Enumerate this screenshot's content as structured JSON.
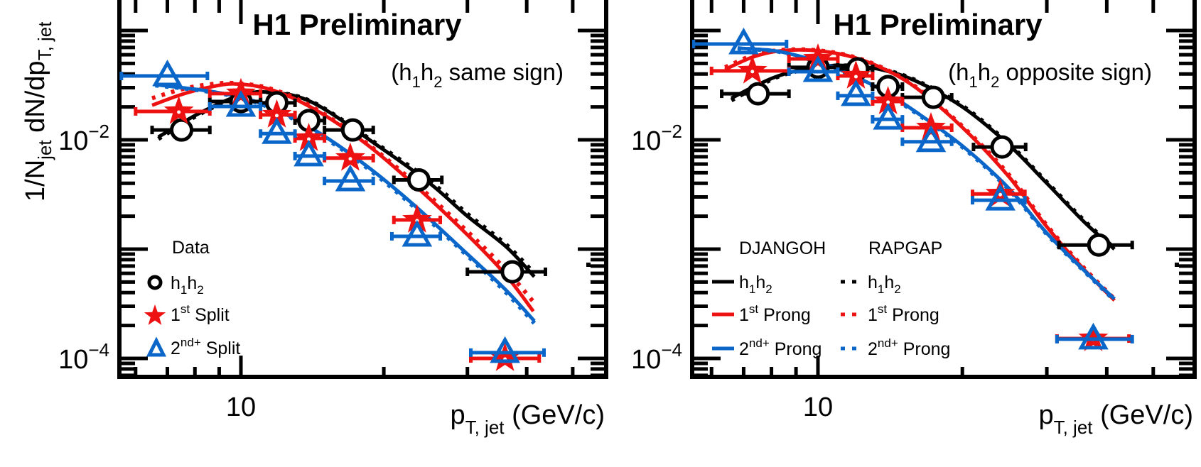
{
  "figure": {
    "ylabel": {
      "main": "1/N",
      "sub1": "jet",
      "mid": " dN/dp",
      "sub2": "T, jet"
    },
    "y_tick_labels": [
      {
        "value": 0.01,
        "base": "10",
        "exp": "−2"
      },
      {
        "value": 0.0001,
        "base": "10",
        "exp": "−4"
      }
    ],
    "x_tick_labels": [
      {
        "value": 10,
        "text": "10"
      }
    ],
    "xlabel": {
      "main": "p",
      "sub": "T, jet",
      "unit": " (GeV/c)"
    },
    "colors": {
      "h1h2": "#000000",
      "first": "#ee1111",
      "second": "#0a66c8"
    }
  },
  "chart_data": [
    {
      "type": "scatter",
      "panel": "left",
      "title": "H1 Preliminary",
      "annotation": {
        "pre": "(h",
        "s1": "1",
        "mid": "h",
        "s2": "2",
        "post": " same sign)"
      },
      "xlabel": "p_T, jet (GeV/c)",
      "ylabel": "1/N_jet dN/dp_T, jet",
      "xscale": "log",
      "yscale": "log",
      "xlim": [
        5.5,
        60
      ],
      "ylim": [
        6.8e-05,
        0.2
      ],
      "legend": {
        "placement": "bottom-left",
        "header": "Data",
        "entries": [
          {
            "marker": "circle",
            "label": "h",
            "s1": "1",
            "mid": "h",
            "s2": "2",
            "sup": "",
            "tail": "",
            "color_key": "h1h2"
          },
          {
            "marker": "star",
            "label": "1",
            "sup": "st",
            "tail": " Split",
            "color_key": "first"
          },
          {
            "marker": "triangle",
            "label": "2",
            "sup": "nd+",
            "tail": " Split",
            "color_key": "second"
          }
        ]
      },
      "series": [
        {
          "name": "Data h1h2",
          "marker": "circle",
          "color_key": "h1h2",
          "points": [
            {
              "x": 7.5,
              "y": 0.0123,
              "xlo": 6.5,
              "xhi": 8.6
            },
            {
              "x": 10.0,
              "y": 0.0224,
              "xlo": 8.6,
              "xhi": 11.0
            },
            {
              "x": 11.9,
              "y": 0.0218,
              "xlo": 11.0,
              "xhi": 13.0
            },
            {
              "x": 13.9,
              "y": 0.015,
              "xlo": 13.0,
              "xhi": 15.0
            },
            {
              "x": 17.2,
              "y": 0.0123,
              "xlo": 15.0,
              "xhi": 19.0
            },
            {
              "x": 23.7,
              "y": 0.0043,
              "xlo": 21.0,
              "xhi": 26.5
            },
            {
              "x": 37.3,
              "y": 0.00062,
              "xlo": 30.0,
              "xhi": 43.8
            }
          ]
        },
        {
          "name": "Data 1st Split",
          "marker": "star",
          "color_key": "first",
          "points": [
            {
              "x": 7.4,
              "y": 0.0182,
              "xlo": 6.0,
              "xhi": 8.6
            },
            {
              "x": 10.0,
              "y": 0.0265,
              "xlo": 8.6,
              "xhi": 11.0
            },
            {
              "x": 11.9,
              "y": 0.0169,
              "xlo": 11.0,
              "xhi": 13.0
            },
            {
              "x": 13.9,
              "y": 0.0103,
              "xlo": 13.0,
              "xhi": 15.0
            },
            {
              "x": 17.0,
              "y": 0.0068,
              "xlo": 15.0,
              "xhi": 19.0
            },
            {
              "x": 23.5,
              "y": 0.00185,
              "xlo": 21.0,
              "xhi": 26.3
            },
            {
              "x": 36.0,
              "y": 0.0001,
              "xlo": 30.5,
              "xhi": 42.5
            }
          ]
        },
        {
          "name": "Data 2nd+ Split",
          "marker": "triangle",
          "color_key": "second",
          "points": [
            {
              "x": 7.0,
              "y": 0.0384,
              "xlo": 5.6,
              "xhi": 8.5
            },
            {
              "x": 10.0,
              "y": 0.0202,
              "xlo": 8.6,
              "xhi": 11.0
            },
            {
              "x": 11.9,
              "y": 0.0114,
              "xlo": 11.0,
              "xhi": 13.0
            },
            {
              "x": 13.9,
              "y": 0.0071,
              "xlo": 13.0,
              "xhi": 15.0
            },
            {
              "x": 17.0,
              "y": 0.0042,
              "xlo": 15.0,
              "xhi": 19.0
            },
            {
              "x": 23.5,
              "y": 0.00131,
              "xlo": 20.8,
              "xhi": 26.3
            },
            {
              "x": 36.0,
              "y": 0.000113,
              "xlo": 30.5,
              "xhi": 43.5
            }
          ]
        },
        {
          "name": "DJANGOH h1h2",
          "line": "solid",
          "color_key": "h1h2",
          "x": [
            6.7,
            8.15,
            9.9,
            11.5,
            14.2,
            19.6,
            25.0,
            30.0,
            36.2,
            41.5
          ],
          "y": [
            0.0106,
            0.0174,
            0.0253,
            0.0272,
            0.0218,
            0.0086,
            0.004,
            0.002,
            0.00105,
            0.00056
          ]
        },
        {
          "name": "RAPGAP h1h2",
          "line": "dotted",
          "color_key": "h1h2",
          "x": [
            6.7,
            8.15,
            9.9,
            11.5,
            14.2,
            19.6,
            25.0,
            30.0,
            36.2,
            41.5
          ],
          "y": [
            0.0102,
            0.017,
            0.025,
            0.0272,
            0.022,
            0.0088,
            0.0042,
            0.0021,
            0.0011,
            0.0006
          ]
        },
        {
          "name": "DJANGOH 1st Prong",
          "line": "solid",
          "color_key": "first",
          "x": [
            6.5,
            7.5,
            8.5,
            9.7,
            11.5,
            14.0,
            18.0,
            23.0,
            30.0,
            36.0,
            41.3
          ],
          "y": [
            0.0207,
            0.026,
            0.03,
            0.0325,
            0.029,
            0.02,
            0.0098,
            0.004,
            0.00135,
            0.00059,
            0.00027
          ]
        },
        {
          "name": "RAPGAP 1st Prong",
          "line": "dotted",
          "color_key": "first",
          "x": [
            6.5,
            7.5,
            8.5,
            9.7,
            11.5,
            14.0,
            18.0,
            23.0,
            30.0,
            36.0,
            41.3
          ],
          "y": [
            0.024,
            0.029,
            0.032,
            0.033,
            0.0295,
            0.0205,
            0.01,
            0.0042,
            0.00145,
            0.00066,
            0.00033
          ]
        },
        {
          "name": "DJANGOH 2nd+ Prong",
          "line": "solid",
          "color_key": "second",
          "x": [
            6.6,
            7.5,
            8.5,
            9.9,
            11.5,
            14.0,
            18.0,
            23.0,
            30.0,
            36.0,
            41.5
          ],
          "y": [
            0.032,
            0.03,
            0.028,
            0.0248,
            0.02,
            0.013,
            0.0062,
            0.0026,
            0.0009,
            0.00043,
            0.00022
          ]
        },
        {
          "name": "RAPGAP 2nd+ Prong",
          "line": "dotted",
          "color_key": "second",
          "x": [
            6.6,
            7.5,
            8.5,
            9.9,
            11.5,
            14.0,
            18.0,
            23.0,
            30.0,
            36.0,
            41.5
          ],
          "y": [
            0.0315,
            0.0297,
            0.0277,
            0.0245,
            0.0197,
            0.0127,
            0.006,
            0.0025,
            0.00087,
            0.00041,
            0.00021
          ]
        }
      ]
    },
    {
      "type": "scatter",
      "panel": "right",
      "title": "H1 Preliminary",
      "annotation": {
        "pre": "(h",
        "s1": "1",
        "mid": "h",
        "s2": "2",
        "post": " opposite sign)"
      },
      "xlabel": "p_T, jet (GeV/c)",
      "ylabel": "1/N_jet dN/dp_T, jet",
      "xscale": "log",
      "yscale": "log",
      "xlim": [
        5.5,
        60
      ],
      "ylim": [
        6.8e-05,
        0.2
      ],
      "legend": {
        "placement": "bottom-left",
        "headers": [
          "DJANGOH",
          "RAPGAP"
        ],
        "entries": [
          {
            "line": "solid",
            "color_key": "h1h2",
            "label": "h",
            "s1": "1",
            "mid": "h",
            "s2": "2",
            "sup": "",
            "tail": ""
          },
          {
            "line": "solid",
            "color_key": "first",
            "label": "1",
            "sup": "st",
            "tail": " Prong"
          },
          {
            "line": "solid",
            "color_key": "second",
            "label": "2",
            "sup": "nd+",
            "tail": " Prong"
          },
          {
            "line": "dotted",
            "color_key": "h1h2",
            "label": "h",
            "s1": "1",
            "mid": "h",
            "s2": "2",
            "sup": "",
            "tail": ""
          },
          {
            "line": "dotted",
            "color_key": "first",
            "label": "1",
            "sup": "st",
            "tail": " Prong"
          },
          {
            "line": "dotted",
            "color_key": "second",
            "label": "2",
            "sup": "nd+",
            "tail": " Prong"
          }
        ]
      },
      "series": [
        {
          "name": "Data h1h2",
          "marker": "circle",
          "color_key": "h1h2",
          "points": [
            {
              "x": 7.5,
              "y": 0.0264,
              "xlo": 6.3,
              "xhi": 8.7
            },
            {
              "x": 10.0,
              "y": 0.046,
              "xlo": 8.7,
              "xhi": 11.0
            },
            {
              "x": 12.1,
              "y": 0.0446,
              "xlo": 11.0,
              "xhi": 13.0
            },
            {
              "x": 14.0,
              "y": 0.0307,
              "xlo": 13.0,
              "xhi": 15.0
            },
            {
              "x": 17.4,
              "y": 0.0245,
              "xlo": 15.0,
              "xhi": 19.0
            },
            {
              "x": 24.2,
              "y": 0.0086,
              "xlo": 21.1,
              "xhi": 27.1
            },
            {
              "x": 38.5,
              "y": 0.00109,
              "xlo": 31.8,
              "xhi": 45.2
            }
          ]
        },
        {
          "name": "Data 1st Split",
          "marker": "star",
          "color_key": "first",
          "points": [
            {
              "x": 7.3,
              "y": 0.0427,
              "xlo": 6.0,
              "xhi": 8.7
            },
            {
              "x": 10.0,
              "y": 0.055,
              "xlo": 8.7,
              "xhi": 11.0
            },
            {
              "x": 12.0,
              "y": 0.0384,
              "xlo": 11.0,
              "xhi": 13.0
            },
            {
              "x": 14.0,
              "y": 0.0224,
              "xlo": 13.0,
              "xhi": 15.0
            },
            {
              "x": 17.2,
              "y": 0.0129,
              "xlo": 15.0,
              "xhi": 19.0
            },
            {
              "x": 24.0,
              "y": 0.0032,
              "xlo": 21.0,
              "xhi": 27.0
            },
            {
              "x": 37.5,
              "y": 0.000152,
              "xlo": 31.5,
              "xhi": 44.5
            }
          ]
        },
        {
          "name": "Data 2nd+ Split",
          "marker": "triangle",
          "color_key": "second",
          "points": [
            {
              "x": 7.0,
              "y": 0.0753,
              "xlo": 5.5,
              "xhi": 8.6
            },
            {
              "x": 10.0,
              "y": 0.042,
              "xlo": 8.7,
              "xhi": 11.0
            },
            {
              "x": 12.0,
              "y": 0.0253,
              "xlo": 11.0,
              "xhi": 13.0
            },
            {
              "x": 14.0,
              "y": 0.0154,
              "xlo": 13.0,
              "xhi": 15.0
            },
            {
              "x": 17.2,
              "y": 0.0096,
              "xlo": 15.0,
              "xhi": 19.0
            },
            {
              "x": 24.0,
              "y": 0.0028,
              "xlo": 21.0,
              "xhi": 27.0
            },
            {
              "x": 37.5,
              "y": 0.00015,
              "xlo": 31.5,
              "xhi": 45.2
            }
          ]
        },
        {
          "name": "DJANGOH h1h2",
          "line": "solid",
          "color_key": "h1h2",
          "x": [
            6.6,
            7.5,
            8.5,
            10.0,
            11.5,
            13.5,
            16.0,
            20.0,
            25.0,
            30.0,
            36.0,
            41.5
          ],
          "y": [
            0.024,
            0.032,
            0.04,
            0.0465,
            0.0478,
            0.044,
            0.0345,
            0.02,
            0.009,
            0.004,
            0.00175,
            0.001
          ]
        },
        {
          "name": "RAPGAP h1h2",
          "line": "dotted",
          "color_key": "h1h2",
          "x": [
            6.6,
            7.5,
            8.5,
            10.0,
            11.5,
            13.5,
            16.0,
            20.0,
            25.0,
            30.0,
            36.0,
            41.5
          ],
          "y": [
            0.023,
            0.031,
            0.0395,
            0.046,
            0.0478,
            0.0445,
            0.035,
            0.0205,
            0.0092,
            0.0041,
            0.0018,
            0.00102
          ]
        },
        {
          "name": "DJANGOH 1st Prong",
          "line": "solid",
          "color_key": "first",
          "x": [
            6.4,
            7.3,
            8.3,
            9.7,
            11.5,
            13.5,
            16.0,
            20.0,
            25.0,
            30.0,
            36.0,
            41.5
          ],
          "y": [
            0.044,
            0.057,
            0.065,
            0.066,
            0.059,
            0.046,
            0.03,
            0.013,
            0.0046,
            0.0016,
            0.00064,
            0.00034
          ]
        },
        {
          "name": "RAPGAP 1st Prong",
          "line": "dotted",
          "color_key": "first",
          "x": [
            6.4,
            7.3,
            8.3,
            9.7,
            11.5,
            13.5,
            16.0,
            20.0,
            25.0,
            30.0,
            36.0,
            41.5
          ],
          "y": [
            0.046,
            0.059,
            0.066,
            0.0665,
            0.0595,
            0.0465,
            0.0305,
            0.0133,
            0.0048,
            0.00165,
            0.00066,
            0.00035
          ]
        },
        {
          "name": "DJANGOH 2nd+ Prong",
          "line": "solid",
          "color_key": "second",
          "x": [
            6.8,
            7.8,
            8.5,
            10.0,
            11.5,
            13.5,
            16.0,
            20.0,
            25.0,
            30.0,
            36.0,
            41.5
          ],
          "y": [
            0.069,
            0.0665,
            0.063,
            0.052,
            0.041,
            0.029,
            0.018,
            0.0088,
            0.0036,
            0.0014,
            0.00063,
            0.00035
          ]
        },
        {
          "name": "RAPGAP 2nd+ Prong",
          "line": "dotted",
          "color_key": "second",
          "x": [
            6.8,
            7.8,
            8.5,
            10.0,
            11.5,
            13.5,
            16.0,
            20.0,
            25.0,
            30.0,
            36.0,
            41.5
          ],
          "y": [
            0.0685,
            0.066,
            0.0625,
            0.0515,
            0.0405,
            0.0285,
            0.0176,
            0.0086,
            0.0035,
            0.00137,
            0.00062,
            0.00034
          ]
        }
      ]
    }
  ]
}
